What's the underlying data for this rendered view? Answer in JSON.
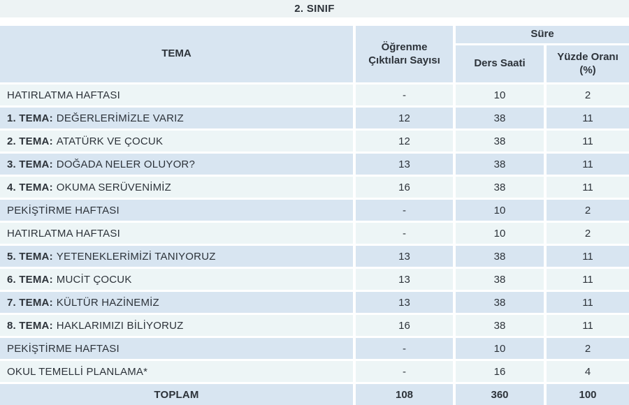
{
  "title": "2. SINIF",
  "colors": {
    "title_band": "#edf3f4",
    "header_and_even_rows": "#d8e5f1",
    "odd_rows": "#edf5f6",
    "text": "#2d333a",
    "gutter": "#ffffff"
  },
  "table": {
    "headers": {
      "tema": "TEMA",
      "outcomes_line1": "Öğrenme",
      "outcomes_line2": "Çıktıları Sayısı",
      "sure_group": "Süre",
      "ders_saati": "Ders Saati",
      "yuzde_line1": "Yüzde Oranı",
      "yuzde_line2": "(%)"
    },
    "rows": [
      {
        "prefix": "",
        "label": "HATIRLATMA HAFTASI",
        "outcomes": "-",
        "hours": "10",
        "percent": "2",
        "is_total": false
      },
      {
        "prefix": "1. TEMA:",
        "label": "DEĞERLERİMİZLE VARIZ",
        "outcomes": "12",
        "hours": "38",
        "percent": "11",
        "is_total": false
      },
      {
        "prefix": "2. TEMA:",
        "label": "ATATÜRK VE ÇOCUK",
        "outcomes": "12",
        "hours": "38",
        "percent": "11",
        "is_total": false
      },
      {
        "prefix": "3. TEMA:",
        "label": "DOĞADA NELER OLUYOR?",
        "outcomes": "13",
        "hours": "38",
        "percent": "11",
        "is_total": false
      },
      {
        "prefix": "4. TEMA:",
        "label": "OKUMA SERÜVENİMİZ",
        "outcomes": "16",
        "hours": "38",
        "percent": "11",
        "is_total": false
      },
      {
        "prefix": "",
        "label": "PEKİŞTİRME HAFTASI",
        "outcomes": "-",
        "hours": "10",
        "percent": "2",
        "is_total": false
      },
      {
        "prefix": "",
        "label": "HATIRLATMA HAFTASI",
        "outcomes": "-",
        "hours": "10",
        "percent": "2",
        "is_total": false
      },
      {
        "prefix": "5. TEMA:",
        "label": "YETENEKLERİMİZİ TANIYORUZ",
        "outcomes": "13",
        "hours": "38",
        "percent": "11",
        "is_total": false
      },
      {
        "prefix": "6. TEMA:",
        "label": "MUCİT ÇOCUK",
        "outcomes": "13",
        "hours": "38",
        "percent": "11",
        "is_total": false
      },
      {
        "prefix": "7. TEMA:",
        "label": "KÜLTÜR HAZİNEMİZ",
        "outcomes": "13",
        "hours": "38",
        "percent": "11",
        "is_total": false
      },
      {
        "prefix": "8. TEMA:",
        "label": "HAKLARIMIZI BİLİYORUZ",
        "outcomes": "16",
        "hours": "38",
        "percent": "11",
        "is_total": false
      },
      {
        "prefix": "",
        "label": "PEKİŞTİRME HAFTASI",
        "outcomes": "-",
        "hours": "10",
        "percent": "2",
        "is_total": false
      },
      {
        "prefix": "",
        "label": "OKUL TEMELLİ PLANLAMA*",
        "outcomes": "-",
        "hours": "16",
        "percent": "4",
        "is_total": false
      },
      {
        "prefix": "",
        "label": "TOPLAM",
        "outcomes": "108",
        "hours": "360",
        "percent": "100",
        "is_total": true
      }
    ]
  }
}
